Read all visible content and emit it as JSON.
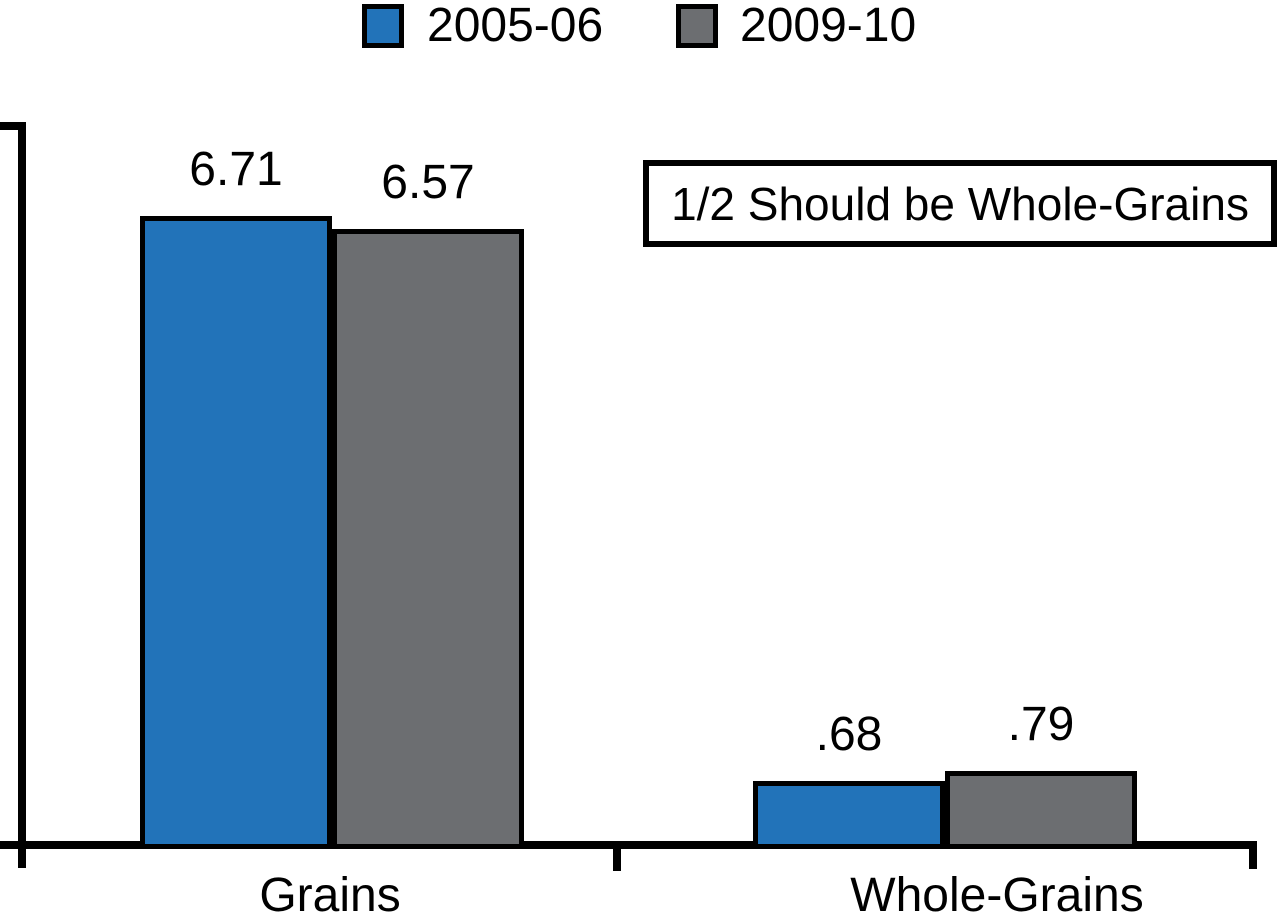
{
  "colors": {
    "series_2005_06": "#2273b9",
    "series_2009_10": "#6c6e71",
    "axis": "#000000",
    "background": "#ffffff"
  },
  "legend": {
    "position": "top",
    "items": [
      {
        "label": "2005-06",
        "color": "#2273b9"
      },
      {
        "label": "2009-10",
        "color": "#6c6e71"
      }
    ]
  },
  "annotation_box": {
    "text": "1/2 Should be Whole-Grains"
  },
  "chart_data": {
    "type": "bar",
    "title": "",
    "xlabel": "",
    "ylabel": "",
    "categories": [
      "Grains",
      "Whole-Grains"
    ],
    "series": [
      {
        "name": "2005-06",
        "color": "#2273b9",
        "values": [
          6.71,
          0.68
        ],
        "display": [
          "6.71",
          ".68"
        ]
      },
      {
        "name": "2009-10",
        "color": "#6c6e71",
        "values": [
          6.57,
          0.79
        ],
        "display": [
          "6.57",
          ".79"
        ]
      }
    ],
    "annotation": "1/2 Should be Whole-Grains",
    "ylim": [
      0,
      7.7
    ],
    "y_tick_labels_shown": false,
    "value_labels_shown": true,
    "grid": false,
    "legend_position": "top-center"
  }
}
